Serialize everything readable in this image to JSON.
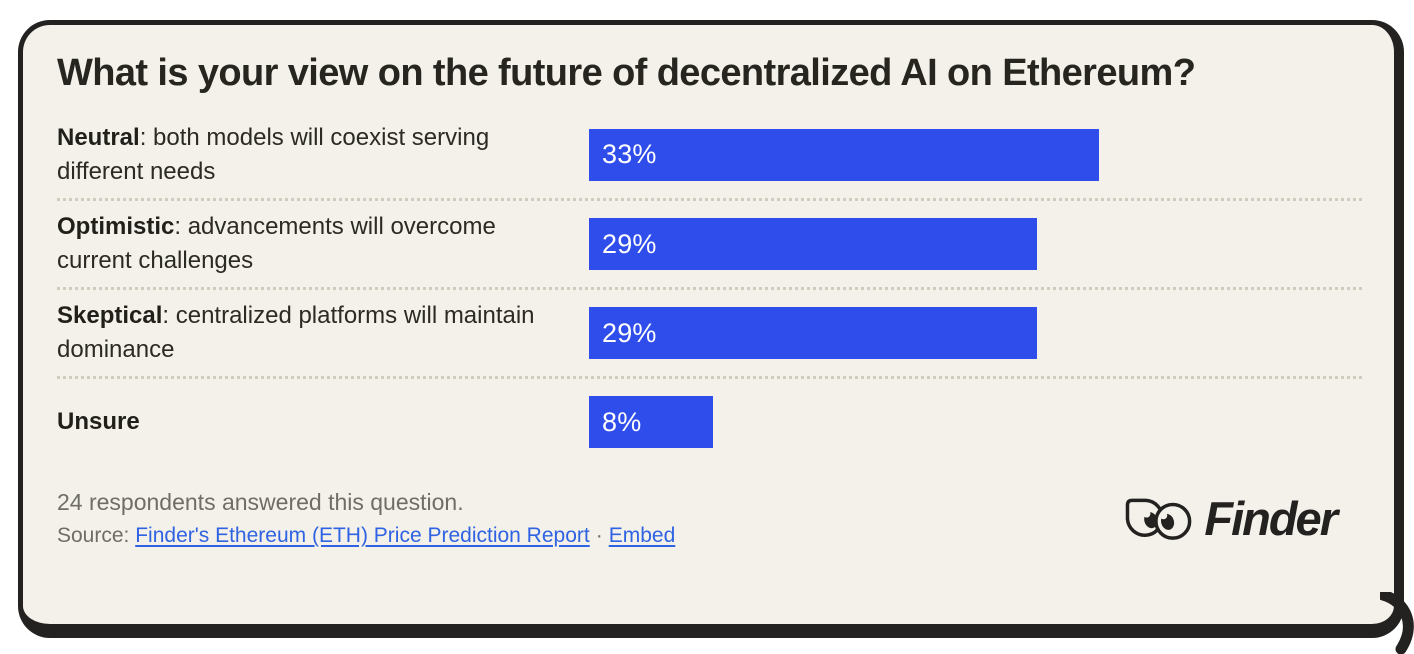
{
  "chart_data": {
    "type": "bar",
    "orientation": "horizontal",
    "title": "What is your view on the future of decentralized AI on Ethereum?",
    "categories": [
      "Neutral: both models will coexist serving different needs",
      "Optimistic: advancements will overcome current challenges",
      "Skeptical: centralized platforms will maintain dominance",
      "Unsure"
    ],
    "values": [
      33,
      29,
      29,
      8
    ],
    "value_labels": [
      "33%",
      "29%",
      "29%",
      "8%"
    ],
    "xlim": [
      0,
      50
    ],
    "grid": false,
    "legend": false,
    "bar_color": "#2f4dea",
    "value_label_position": "inside-left"
  },
  "title": "What is your view on the future of decentralized AI on Ethereum?",
  "rows": [
    {
      "term": "Neutral",
      "rest": ": both models will coexist serving different needs",
      "value": 33,
      "value_label": "33%"
    },
    {
      "term": "Optimistic",
      "rest": ": advancements will overcome current challenges",
      "value": 29,
      "value_label": "29%"
    },
    {
      "term": "Skeptical",
      "rest": ": centralized platforms will maintain dominance",
      "value": 29,
      "value_label": "29%"
    },
    {
      "term": "Unsure",
      "rest": "",
      "value": 8,
      "value_label": "8%"
    }
  ],
  "footer": {
    "respondents": "24 respondents answered this question.",
    "source_label": "Source:",
    "source_link": "Finder's Ethereum (ETH) Price Prediction Report",
    "separator": "·",
    "embed_link": "Embed"
  },
  "logo": {
    "wordmark": "Finder"
  },
  "colors": {
    "card_background": "#f3f1e9",
    "border": "#232220",
    "bar": "#2f4dea",
    "link": "#2f63e3",
    "title_text": "#26251f",
    "muted_text": "#6f6e66",
    "separator_dots": "#cfccbe"
  }
}
